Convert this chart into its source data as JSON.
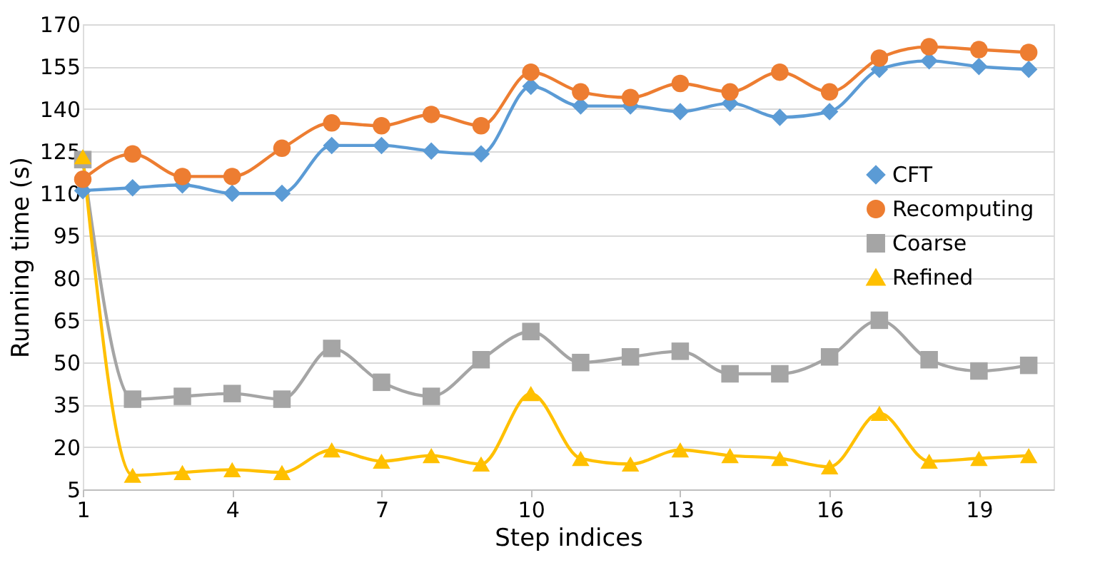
{
  "chart_data": {
    "type": "line",
    "xlabel": "Step indices",
    "ylabel": "Running time (s)",
    "x": [
      1,
      2,
      3,
      4,
      5,
      6,
      7,
      8,
      9,
      10,
      11,
      12,
      13,
      14,
      15,
      16,
      17,
      18,
      19,
      20
    ],
    "xlim": [
      1,
      20.5
    ],
    "xticks": [
      1,
      4,
      7,
      10,
      13,
      16,
      19
    ],
    "ylim": [
      5,
      170
    ],
    "yticks": [
      5,
      20,
      35,
      50,
      65,
      80,
      95,
      110,
      125,
      140,
      155,
      170
    ],
    "grid": "y",
    "legend": "right",
    "series": [
      {
        "name": "CFT",
        "color": "#5b9bd5",
        "marker": "diamond",
        "values": [
          111,
          112,
          113,
          110,
          110,
          127,
          127,
          125,
          124,
          148,
          141,
          141,
          139,
          142,
          137,
          139,
          154,
          157,
          155,
          154
        ]
      },
      {
        "name": "Recomputing",
        "color": "#ed7d31",
        "marker": "circle",
        "values": [
          115,
          124,
          116,
          116,
          126,
          135,
          134,
          138,
          134,
          153,
          146,
          144,
          149,
          146,
          153,
          146,
          158,
          162,
          161,
          160
        ]
      },
      {
        "name": "Coarse",
        "color": "#a5a5a5",
        "marker": "square",
        "values": [
          122,
          37,
          38,
          39,
          37,
          55,
          43,
          38,
          51,
          61,
          50,
          52,
          54,
          46,
          46,
          52,
          65,
          51,
          47,
          49
        ]
      },
      {
        "name": "Refined",
        "color": "#ffc000",
        "marker": "triangle",
        "values": [
          123,
          10,
          11,
          12,
          11,
          19,
          15,
          17,
          14,
          39,
          16,
          14,
          19,
          17,
          16,
          13,
          32,
          15,
          16,
          17
        ]
      }
    ]
  }
}
